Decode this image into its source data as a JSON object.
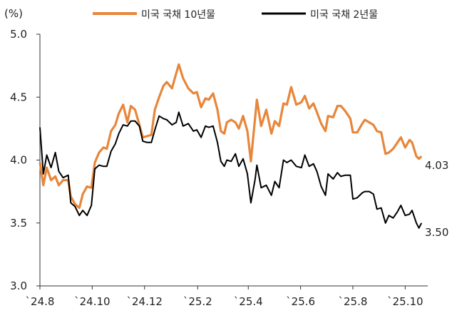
{
  "chart_data": {
    "type": "line",
    "y_unit": "(%)",
    "ylim": [
      3.0,
      5.0
    ],
    "y_ticks": [
      "5.0",
      "4.5",
      "4.0",
      "3.5",
      "3.0"
    ],
    "x_range": [
      "2024-08-01",
      "2025-10-24"
    ],
    "x_ticks": [
      {
        "label": "`24.8",
        "date": "2024-08-01"
      },
      {
        "label": "`24.10",
        "date": "2024-10-01"
      },
      {
        "label": "`24.12",
        "date": "2024-12-01"
      },
      {
        "label": "`25.2",
        "date": "2025-02-01"
      },
      {
        "label": "`25.4",
        "date": "2025-04-01"
      },
      {
        "label": "`25.6",
        "date": "2025-06-01"
      },
      {
        "label": "`25.8",
        "date": "2025-08-01"
      },
      {
        "label": "`25.10",
        "date": "2025-10-01"
      }
    ],
    "legend_position": "top",
    "grid": false,
    "series": [
      {
        "name": "미국 국채 10년물",
        "color": "#E8863A",
        "end_label": "4.03",
        "points": [
          [
            "2024-08-01",
            3.98
          ],
          [
            "2024-08-05",
            3.8
          ],
          [
            "2024-08-09",
            3.94
          ],
          [
            "2024-08-14",
            3.84
          ],
          [
            "2024-08-19",
            3.87
          ],
          [
            "2024-08-23",
            3.8
          ],
          [
            "2024-08-28",
            3.84
          ],
          [
            "2024-09-03",
            3.84
          ],
          [
            "2024-09-06",
            3.71
          ],
          [
            "2024-09-11",
            3.65
          ],
          [
            "2024-09-16",
            3.62
          ],
          [
            "2024-09-20",
            3.73
          ],
          [
            "2024-09-25",
            3.79
          ],
          [
            "2024-09-30",
            3.78
          ],
          [
            "2024-10-04",
            3.98
          ],
          [
            "2024-10-09",
            4.06
          ],
          [
            "2024-10-14",
            4.1
          ],
          [
            "2024-10-18",
            4.09
          ],
          [
            "2024-10-23",
            4.23
          ],
          [
            "2024-10-28",
            4.28
          ],
          [
            "2024-11-01",
            4.37
          ],
          [
            "2024-11-06",
            4.44
          ],
          [
            "2024-11-11",
            4.3
          ],
          [
            "2024-11-15",
            4.43
          ],
          [
            "2024-11-20",
            4.4
          ],
          [
            "2024-11-25",
            4.28
          ],
          [
            "2024-11-29",
            4.18
          ],
          [
            "2024-12-04",
            4.19
          ],
          [
            "2024-12-09",
            4.2
          ],
          [
            "2024-12-13",
            4.4
          ],
          [
            "2024-12-18",
            4.5
          ],
          [
            "2024-12-23",
            4.59
          ],
          [
            "2024-12-27",
            4.62
          ],
          [
            "2025-01-02",
            4.57
          ],
          [
            "2025-01-07",
            4.69
          ],
          [
            "2025-01-10",
            4.76
          ],
          [
            "2025-01-15",
            4.65
          ],
          [
            "2025-01-21",
            4.57
          ],
          [
            "2025-01-27",
            4.53
          ],
          [
            "2025-01-31",
            4.54
          ],
          [
            "2025-02-05",
            4.42
          ],
          [
            "2025-02-10",
            4.49
          ],
          [
            "2025-02-14",
            4.48
          ],
          [
            "2025-02-19",
            4.53
          ],
          [
            "2025-02-24",
            4.4
          ],
          [
            "2025-02-28",
            4.23
          ],
          [
            "2025-03-04",
            4.21
          ],
          [
            "2025-03-07",
            4.3
          ],
          [
            "2025-03-12",
            4.32
          ],
          [
            "2025-03-17",
            4.3
          ],
          [
            "2025-03-21",
            4.25
          ],
          [
            "2025-03-26",
            4.35
          ],
          [
            "2025-03-31",
            4.23
          ],
          [
            "2025-04-04",
            3.99
          ],
          [
            "2025-04-09",
            4.34
          ],
          [
            "2025-04-11",
            4.48
          ],
          [
            "2025-04-16",
            4.27
          ],
          [
            "2025-04-22",
            4.4
          ],
          [
            "2025-04-28",
            4.21
          ],
          [
            "2025-05-02",
            4.31
          ],
          [
            "2025-05-07",
            4.27
          ],
          [
            "2025-05-12",
            4.45
          ],
          [
            "2025-05-16",
            4.44
          ],
          [
            "2025-05-21",
            4.58
          ],
          [
            "2025-05-27",
            4.44
          ],
          [
            "2025-06-02",
            4.46
          ],
          [
            "2025-06-06",
            4.51
          ],
          [
            "2025-06-11",
            4.41
          ],
          [
            "2025-06-16",
            4.45
          ],
          [
            "2025-06-20",
            4.38
          ],
          [
            "2025-06-25",
            4.29
          ],
          [
            "2025-06-30",
            4.23
          ],
          [
            "2025-07-03",
            4.35
          ],
          [
            "2025-07-09",
            4.34
          ],
          [
            "2025-07-14",
            4.43
          ],
          [
            "2025-07-18",
            4.43
          ],
          [
            "2025-07-23",
            4.39
          ],
          [
            "2025-07-29",
            4.33
          ],
          [
            "2025-08-01",
            4.22
          ],
          [
            "2025-08-06",
            4.22
          ],
          [
            "2025-08-12",
            4.29
          ],
          [
            "2025-08-15",
            4.32
          ],
          [
            "2025-08-20",
            4.3
          ],
          [
            "2025-08-25",
            4.28
          ],
          [
            "2025-08-29",
            4.23
          ],
          [
            "2025-09-03",
            4.22
          ],
          [
            "2025-09-08",
            4.05
          ],
          [
            "2025-09-12",
            4.06
          ],
          [
            "2025-09-17",
            4.09
          ],
          [
            "2025-09-22",
            4.14
          ],
          [
            "2025-09-26",
            4.18
          ],
          [
            "2025-10-01",
            4.1
          ],
          [
            "2025-10-06",
            4.16
          ],
          [
            "2025-10-09",
            4.14
          ],
          [
            "2025-10-14",
            4.03
          ],
          [
            "2025-10-17",
            4.01
          ],
          [
            "2025-10-20",
            4.03
          ]
        ]
      },
      {
        "name": "미국 국채 2년물",
        "color": "#000000",
        "end_label": "3.50",
        "points": [
          [
            "2024-08-01",
            4.26
          ],
          [
            "2024-08-05",
            3.89
          ],
          [
            "2024-08-09",
            4.04
          ],
          [
            "2024-08-14",
            3.94
          ],
          [
            "2024-08-19",
            4.06
          ],
          [
            "2024-08-23",
            3.91
          ],
          [
            "2024-08-28",
            3.86
          ],
          [
            "2024-09-03",
            3.88
          ],
          [
            "2024-09-06",
            3.66
          ],
          [
            "2024-09-11",
            3.63
          ],
          [
            "2024-09-16",
            3.56
          ],
          [
            "2024-09-20",
            3.6
          ],
          [
            "2024-09-25",
            3.56
          ],
          [
            "2024-09-30",
            3.64
          ],
          [
            "2024-10-04",
            3.93
          ],
          [
            "2024-10-09",
            3.96
          ],
          [
            "2024-10-14",
            3.95
          ],
          [
            "2024-10-18",
            3.95
          ],
          [
            "2024-10-23",
            4.07
          ],
          [
            "2024-10-28",
            4.13
          ],
          [
            "2024-11-01",
            4.21
          ],
          [
            "2024-11-06",
            4.28
          ],
          [
            "2024-11-11",
            4.27
          ],
          [
            "2024-11-15",
            4.31
          ],
          [
            "2024-11-20",
            4.31
          ],
          [
            "2024-11-25",
            4.27
          ],
          [
            "2024-11-29",
            4.15
          ],
          [
            "2024-12-04",
            4.14
          ],
          [
            "2024-12-09",
            4.14
          ],
          [
            "2024-12-13",
            4.24
          ],
          [
            "2024-12-18",
            4.35
          ],
          [
            "2024-12-23",
            4.33
          ],
          [
            "2024-12-27",
            4.32
          ],
          [
            "2025-01-02",
            4.28
          ],
          [
            "2025-01-07",
            4.3
          ],
          [
            "2025-01-10",
            4.38
          ],
          [
            "2025-01-15",
            4.27
          ],
          [
            "2025-01-21",
            4.29
          ],
          [
            "2025-01-27",
            4.23
          ],
          [
            "2025-01-31",
            4.24
          ],
          [
            "2025-02-05",
            4.18
          ],
          [
            "2025-02-10",
            4.27
          ],
          [
            "2025-02-14",
            4.26
          ],
          [
            "2025-02-19",
            4.27
          ],
          [
            "2025-02-24",
            4.14
          ],
          [
            "2025-02-28",
            3.99
          ],
          [
            "2025-03-04",
            3.95
          ],
          [
            "2025-03-07",
            4.0
          ],
          [
            "2025-03-12",
            3.99
          ],
          [
            "2025-03-17",
            4.05
          ],
          [
            "2025-03-21",
            3.95
          ],
          [
            "2025-03-26",
            4.01
          ],
          [
            "2025-03-31",
            3.89
          ],
          [
            "2025-04-04",
            3.66
          ],
          [
            "2025-04-09",
            3.85
          ],
          [
            "2025-04-11",
            3.96
          ],
          [
            "2025-04-16",
            3.78
          ],
          [
            "2025-04-22",
            3.8
          ],
          [
            "2025-04-28",
            3.72
          ],
          [
            "2025-05-02",
            3.83
          ],
          [
            "2025-05-07",
            3.78
          ],
          [
            "2025-05-12",
            4.0
          ],
          [
            "2025-05-16",
            3.98
          ],
          [
            "2025-05-21",
            4.0
          ],
          [
            "2025-05-27",
            3.95
          ],
          [
            "2025-06-02",
            3.94
          ],
          [
            "2025-06-06",
            4.04
          ],
          [
            "2025-06-11",
            3.95
          ],
          [
            "2025-06-16",
            3.97
          ],
          [
            "2025-06-20",
            3.91
          ],
          [
            "2025-06-25",
            3.79
          ],
          [
            "2025-06-30",
            3.72
          ],
          [
            "2025-07-03",
            3.89
          ],
          [
            "2025-07-09",
            3.85
          ],
          [
            "2025-07-14",
            3.9
          ],
          [
            "2025-07-18",
            3.87
          ],
          [
            "2025-07-23",
            3.88
          ],
          [
            "2025-07-29",
            3.88
          ],
          [
            "2025-08-01",
            3.69
          ],
          [
            "2025-08-06",
            3.7
          ],
          [
            "2025-08-12",
            3.74
          ],
          [
            "2025-08-15",
            3.75
          ],
          [
            "2025-08-20",
            3.75
          ],
          [
            "2025-08-25",
            3.73
          ],
          [
            "2025-08-29",
            3.61
          ],
          [
            "2025-09-03",
            3.62
          ],
          [
            "2025-09-08",
            3.5
          ],
          [
            "2025-09-12",
            3.56
          ],
          [
            "2025-09-17",
            3.54
          ],
          [
            "2025-09-22",
            3.59
          ],
          [
            "2025-09-26",
            3.64
          ],
          [
            "2025-10-01",
            3.56
          ],
          [
            "2025-10-06",
            3.57
          ],
          [
            "2025-10-09",
            3.6
          ],
          [
            "2025-10-14",
            3.5
          ],
          [
            "2025-10-17",
            3.46
          ],
          [
            "2025-10-20",
            3.5
          ]
        ]
      }
    ]
  }
}
